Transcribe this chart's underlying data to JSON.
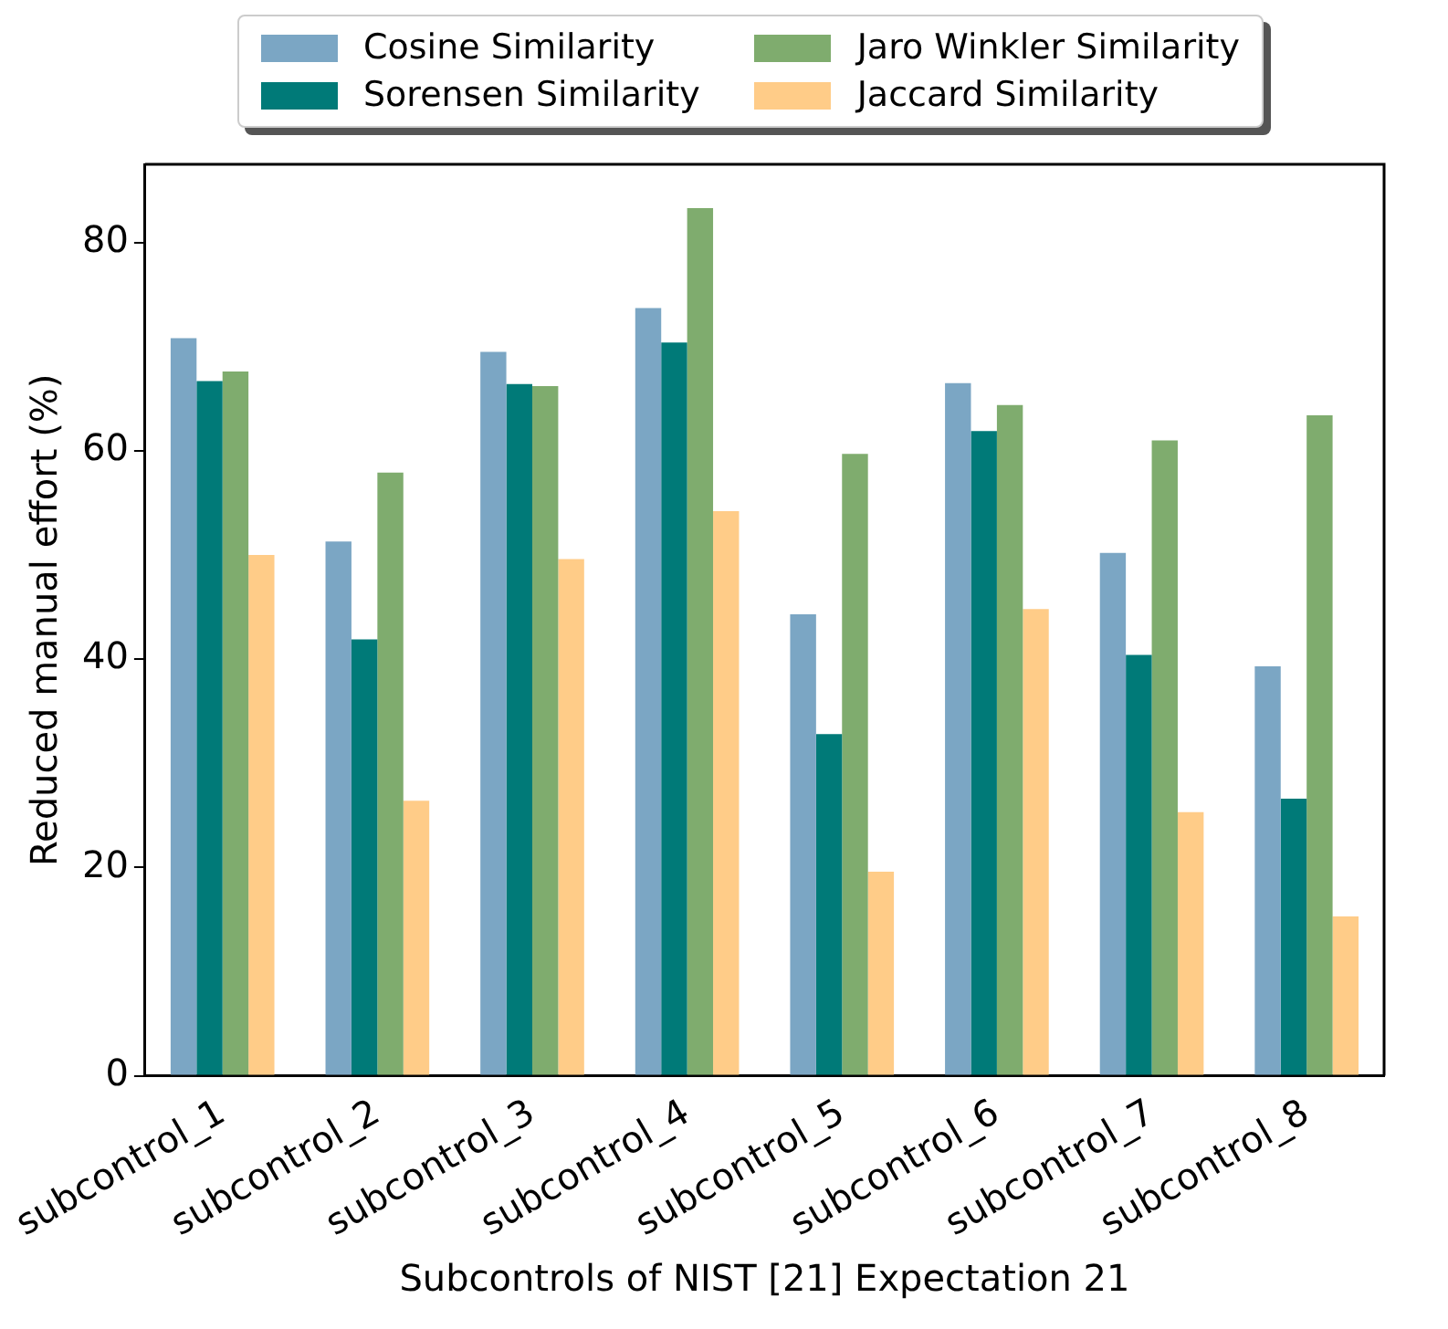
{
  "chart_data": {
    "type": "bar",
    "xlabel": "Subcontrols of NIST [21] Expectation 21",
    "ylabel": "Reduced manual effort (%)",
    "categories": [
      "subcontrol_1",
      "subcontrol_2",
      "subcontrol_3",
      "subcontrol_4",
      "subcontrol_5",
      "subcontrol_6",
      "subcontrol_7",
      "subcontrol_8"
    ],
    "series": [
      {
        "name": "Cosine Similarity",
        "color": "#7ba6c4",
        "values": [
          70.8,
          51.3,
          69.5,
          73.7,
          44.3,
          66.5,
          50.2,
          39.3
        ]
      },
      {
        "name": "Sorensen Similarity",
        "color": "#007a78",
        "values": [
          66.7,
          41.9,
          66.4,
          70.4,
          32.8,
          61.9,
          40.4,
          26.6
        ]
      },
      {
        "name": "Jaro Winkler Similarity",
        "color": "#7fac6e",
        "values": [
          67.6,
          57.9,
          66.2,
          83.3,
          59.7,
          64.4,
          61.0,
          63.4
        ]
      },
      {
        "name": "Jaccard Similarity",
        "color": "#ffcc88",
        "values": [
          50.0,
          26.4,
          49.6,
          54.2,
          19.6,
          44.8,
          25.3,
          15.3
        ]
      }
    ],
    "ylim": [
      0,
      87.5
    ],
    "yticks": [
      0,
      20,
      40,
      60,
      80
    ],
    "grid": false,
    "legend": "top"
  }
}
